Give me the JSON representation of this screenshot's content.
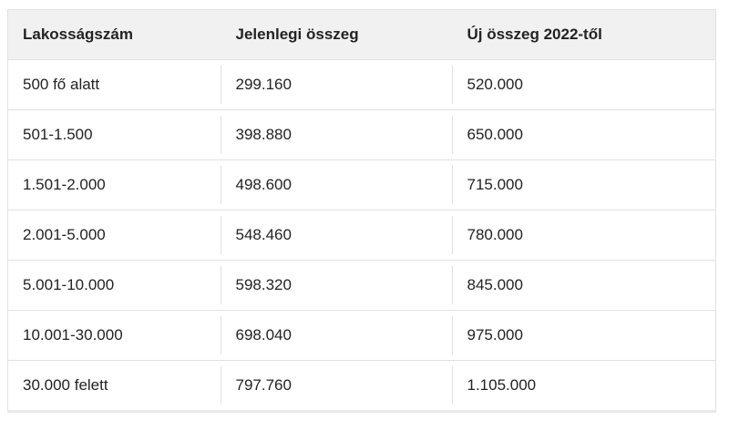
{
  "colors": {
    "page_bg": "#ffffff",
    "header_bg": "#f1f1f1",
    "row_border": "#e2e2e2",
    "cell_divider": "#e0e0e0",
    "outer_bottom_border": "#e9e9e9",
    "text": "#232323"
  },
  "chart_data": {
    "type": "table",
    "title": "",
    "columns": [
      "Lakosságszám",
      "Jelenlegi összeg",
      "Új összeg 2022-től"
    ],
    "rows": [
      [
        "500 fő alatt",
        "299.160",
        "520.000"
      ],
      [
        "501-1.500",
        "398.880",
        "650.000"
      ],
      [
        "1.501-2.000",
        "498.600",
        "715.000"
      ],
      [
        "2.001-5.000",
        "548.460",
        "780.000"
      ],
      [
        "5.001-10.000",
        "598.320",
        "845.000"
      ],
      [
        "10.001-30.000",
        "698.040",
        "975.000"
      ],
      [
        "30.000 felett",
        "797.760",
        "1.105.000"
      ]
    ]
  }
}
